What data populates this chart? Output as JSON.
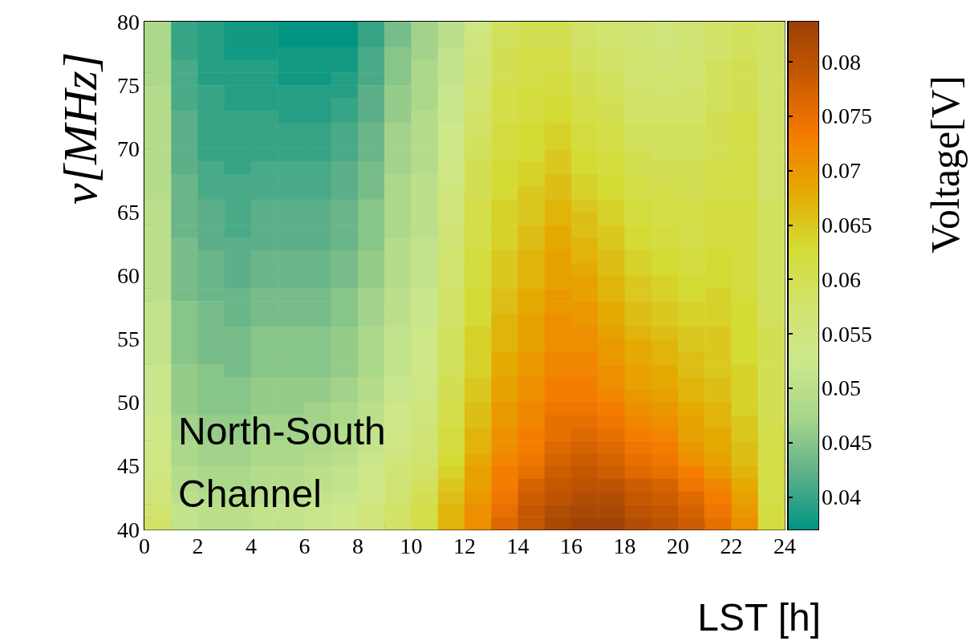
{
  "chart_data": {
    "type": "heatmap",
    "xlabel": "LST [h]",
    "ylabel": "ν[MHz]",
    "clabel": "Voltage[V]",
    "annotations": [
      "North-South\nChannel"
    ],
    "xlim": [
      0,
      24
    ],
    "xticks": [
      0,
      2,
      4,
      6,
      8,
      10,
      12,
      14,
      16,
      18,
      20,
      22,
      24
    ],
    "ylim": [
      40,
      80
    ],
    "yticks": [
      40,
      45,
      50,
      55,
      60,
      65,
      70,
      75,
      80
    ],
    "clim": [
      0.037,
      0.0837
    ],
    "cticks": [
      0.04,
      0.045,
      0.05,
      0.055,
      0.06,
      0.065,
      0.07,
      0.075,
      0.08
    ],
    "cells": [
      [
        0.048,
        0.04,
        0.039,
        0.038,
        0.038,
        0.037,
        0.037,
        0.037,
        0.04,
        0.044,
        0.047,
        0.05,
        0.054,
        0.059,
        0.06,
        0.06,
        0.058,
        0.057,
        0.056,
        0.055,
        0.056,
        0.058,
        0.059,
        0.058
      ],
      [
        0.048,
        0.04,
        0.039,
        0.038,
        0.038,
        0.037,
        0.037,
        0.037,
        0.04,
        0.044,
        0.047,
        0.05,
        0.055,
        0.059,
        0.06,
        0.06,
        0.058,
        0.057,
        0.056,
        0.055,
        0.056,
        0.058,
        0.059,
        0.058
      ],
      [
        0.048,
        0.04,
        0.039,
        0.038,
        0.038,
        0.038,
        0.038,
        0.038,
        0.041,
        0.045,
        0.047,
        0.051,
        0.055,
        0.06,
        0.061,
        0.061,
        0.059,
        0.058,
        0.057,
        0.056,
        0.057,
        0.058,
        0.059,
        0.058
      ],
      [
        0.048,
        0.041,
        0.039,
        0.039,
        0.039,
        0.038,
        0.038,
        0.038,
        0.041,
        0.045,
        0.048,
        0.051,
        0.056,
        0.06,
        0.061,
        0.061,
        0.059,
        0.058,
        0.057,
        0.056,
        0.057,
        0.059,
        0.06,
        0.058
      ],
      [
        0.048,
        0.041,
        0.039,
        0.039,
        0.039,
        0.038,
        0.038,
        0.039,
        0.041,
        0.045,
        0.048,
        0.051,
        0.056,
        0.06,
        0.061,
        0.062,
        0.06,
        0.059,
        0.057,
        0.057,
        0.057,
        0.059,
        0.06,
        0.058
      ],
      [
        0.049,
        0.041,
        0.04,
        0.039,
        0.039,
        0.039,
        0.039,
        0.039,
        0.042,
        0.046,
        0.048,
        0.052,
        0.057,
        0.061,
        0.062,
        0.062,
        0.06,
        0.059,
        0.058,
        0.057,
        0.058,
        0.059,
        0.06,
        0.058
      ],
      [
        0.049,
        0.041,
        0.04,
        0.039,
        0.039,
        0.039,
        0.039,
        0.04,
        0.042,
        0.046,
        0.048,
        0.052,
        0.057,
        0.061,
        0.062,
        0.063,
        0.061,
        0.06,
        0.058,
        0.058,
        0.058,
        0.059,
        0.06,
        0.058
      ],
      [
        0.049,
        0.042,
        0.04,
        0.04,
        0.04,
        0.039,
        0.039,
        0.04,
        0.042,
        0.046,
        0.049,
        0.052,
        0.058,
        0.061,
        0.062,
        0.063,
        0.061,
        0.06,
        0.058,
        0.058,
        0.058,
        0.06,
        0.061,
        0.058
      ],
      [
        0.049,
        0.042,
        0.04,
        0.04,
        0.04,
        0.04,
        0.04,
        0.041,
        0.043,
        0.047,
        0.049,
        0.053,
        0.058,
        0.062,
        0.063,
        0.064,
        0.062,
        0.061,
        0.059,
        0.059,
        0.059,
        0.06,
        0.061,
        0.058
      ],
      [
        0.049,
        0.042,
        0.04,
        0.04,
        0.04,
        0.04,
        0.04,
        0.041,
        0.043,
        0.047,
        0.049,
        0.053,
        0.059,
        0.062,
        0.063,
        0.064,
        0.062,
        0.061,
        0.059,
        0.059,
        0.059,
        0.06,
        0.061,
        0.058
      ],
      [
        0.049,
        0.042,
        0.04,
        0.04,
        0.04,
        0.04,
        0.04,
        0.041,
        0.043,
        0.047,
        0.049,
        0.053,
        0.059,
        0.062,
        0.063,
        0.065,
        0.063,
        0.062,
        0.06,
        0.059,
        0.059,
        0.06,
        0.061,
        0.058
      ],
      [
        0.049,
        0.042,
        0.041,
        0.04,
        0.041,
        0.041,
        0.041,
        0.042,
        0.044,
        0.047,
        0.049,
        0.054,
        0.06,
        0.063,
        0.064,
        0.065,
        0.063,
        0.062,
        0.06,
        0.06,
        0.06,
        0.061,
        0.061,
        0.058
      ],
      [
        0.049,
        0.043,
        0.041,
        0.041,
        0.041,
        0.041,
        0.041,
        0.042,
        0.044,
        0.048,
        0.05,
        0.054,
        0.06,
        0.063,
        0.064,
        0.066,
        0.064,
        0.063,
        0.061,
        0.06,
        0.06,
        0.061,
        0.061,
        0.058
      ],
      [
        0.049,
        0.043,
        0.041,
        0.041,
        0.041,
        0.041,
        0.041,
        0.042,
        0.044,
        0.048,
        0.05,
        0.055,
        0.06,
        0.063,
        0.065,
        0.066,
        0.064,
        0.063,
        0.061,
        0.061,
        0.06,
        0.061,
        0.061,
        0.058
      ],
      [
        0.05,
        0.043,
        0.042,
        0.041,
        0.042,
        0.042,
        0.042,
        0.043,
        0.045,
        0.048,
        0.05,
        0.055,
        0.061,
        0.064,
        0.065,
        0.067,
        0.065,
        0.064,
        0.062,
        0.061,
        0.061,
        0.062,
        0.062,
        0.059
      ],
      [
        0.05,
        0.043,
        0.042,
        0.041,
        0.042,
        0.042,
        0.042,
        0.043,
        0.045,
        0.048,
        0.05,
        0.055,
        0.061,
        0.064,
        0.065,
        0.067,
        0.066,
        0.064,
        0.062,
        0.061,
        0.061,
        0.062,
        0.062,
        0.059
      ],
      [
        0.05,
        0.043,
        0.042,
        0.041,
        0.042,
        0.042,
        0.042,
        0.043,
        0.045,
        0.048,
        0.05,
        0.056,
        0.061,
        0.064,
        0.066,
        0.068,
        0.066,
        0.065,
        0.063,
        0.062,
        0.061,
        0.062,
        0.062,
        0.059
      ],
      [
        0.05,
        0.044,
        0.042,
        0.042,
        0.042,
        0.042,
        0.042,
        0.043,
        0.045,
        0.049,
        0.051,
        0.056,
        0.061,
        0.064,
        0.066,
        0.068,
        0.067,
        0.065,
        0.063,
        0.062,
        0.061,
        0.062,
        0.062,
        0.059
      ],
      [
        0.05,
        0.044,
        0.043,
        0.042,
        0.043,
        0.043,
        0.043,
        0.044,
        0.046,
        0.049,
        0.051,
        0.057,
        0.062,
        0.065,
        0.067,
        0.069,
        0.067,
        0.066,
        0.064,
        0.063,
        0.062,
        0.063,
        0.062,
        0.059
      ],
      [
        0.05,
        0.044,
        0.043,
        0.042,
        0.043,
        0.043,
        0.043,
        0.044,
        0.046,
        0.049,
        0.051,
        0.057,
        0.062,
        0.065,
        0.067,
        0.069,
        0.068,
        0.066,
        0.064,
        0.063,
        0.062,
        0.063,
        0.062,
        0.059
      ],
      [
        0.05,
        0.044,
        0.043,
        0.042,
        0.043,
        0.043,
        0.043,
        0.044,
        0.046,
        0.049,
        0.051,
        0.057,
        0.062,
        0.065,
        0.067,
        0.069,
        0.069,
        0.067,
        0.065,
        0.064,
        0.063,
        0.063,
        0.062,
        0.059
      ],
      [
        0.05,
        0.044,
        0.043,
        0.043,
        0.044,
        0.044,
        0.044,
        0.045,
        0.047,
        0.05,
        0.052,
        0.058,
        0.063,
        0.066,
        0.068,
        0.07,
        0.069,
        0.067,
        0.065,
        0.064,
        0.063,
        0.064,
        0.062,
        0.059
      ],
      [
        0.051,
        0.045,
        0.044,
        0.043,
        0.044,
        0.044,
        0.044,
        0.045,
        0.047,
        0.05,
        0.052,
        0.058,
        0.063,
        0.066,
        0.068,
        0.07,
        0.07,
        0.068,
        0.066,
        0.065,
        0.064,
        0.064,
        0.063,
        0.059
      ],
      [
        0.051,
        0.045,
        0.044,
        0.043,
        0.044,
        0.044,
        0.044,
        0.045,
        0.047,
        0.05,
        0.052,
        0.058,
        0.063,
        0.067,
        0.069,
        0.071,
        0.07,
        0.068,
        0.066,
        0.065,
        0.064,
        0.064,
        0.063,
        0.059
      ],
      [
        0.051,
        0.045,
        0.044,
        0.044,
        0.045,
        0.045,
        0.045,
        0.046,
        0.048,
        0.051,
        0.053,
        0.059,
        0.064,
        0.067,
        0.069,
        0.071,
        0.071,
        0.069,
        0.067,
        0.066,
        0.065,
        0.065,
        0.063,
        0.06
      ],
      [
        0.051,
        0.045,
        0.044,
        0.044,
        0.045,
        0.045,
        0.045,
        0.046,
        0.048,
        0.051,
        0.053,
        0.059,
        0.064,
        0.067,
        0.069,
        0.071,
        0.071,
        0.07,
        0.068,
        0.067,
        0.065,
        0.065,
        0.063,
        0.06
      ],
      [
        0.051,
        0.045,
        0.044,
        0.044,
        0.045,
        0.045,
        0.045,
        0.046,
        0.048,
        0.051,
        0.053,
        0.059,
        0.064,
        0.068,
        0.07,
        0.072,
        0.072,
        0.07,
        0.068,
        0.067,
        0.066,
        0.065,
        0.063,
        0.06
      ],
      [
        0.052,
        0.046,
        0.045,
        0.044,
        0.045,
        0.045,
        0.045,
        0.046,
        0.048,
        0.051,
        0.053,
        0.059,
        0.064,
        0.068,
        0.07,
        0.072,
        0.072,
        0.071,
        0.069,
        0.068,
        0.066,
        0.065,
        0.064,
        0.06
      ],
      [
        0.052,
        0.046,
        0.045,
        0.045,
        0.046,
        0.046,
        0.046,
        0.047,
        0.049,
        0.052,
        0.054,
        0.06,
        0.065,
        0.069,
        0.071,
        0.073,
        0.073,
        0.071,
        0.069,
        0.068,
        0.067,
        0.066,
        0.064,
        0.06
      ],
      [
        0.052,
        0.046,
        0.045,
        0.045,
        0.046,
        0.046,
        0.046,
        0.047,
        0.049,
        0.052,
        0.054,
        0.06,
        0.065,
        0.069,
        0.071,
        0.073,
        0.073,
        0.072,
        0.07,
        0.069,
        0.067,
        0.066,
        0.064,
        0.06
      ],
      [
        0.052,
        0.046,
        0.045,
        0.045,
        0.046,
        0.046,
        0.047,
        0.048,
        0.05,
        0.053,
        0.055,
        0.061,
        0.066,
        0.07,
        0.072,
        0.074,
        0.074,
        0.073,
        0.071,
        0.07,
        0.068,
        0.067,
        0.064,
        0.06
      ],
      [
        0.053,
        0.047,
        0.046,
        0.046,
        0.047,
        0.047,
        0.047,
        0.048,
        0.05,
        0.053,
        0.055,
        0.061,
        0.066,
        0.07,
        0.072,
        0.075,
        0.075,
        0.074,
        0.072,
        0.071,
        0.069,
        0.067,
        0.065,
        0.06
      ],
      [
        0.053,
        0.047,
        0.046,
        0.046,
        0.047,
        0.047,
        0.048,
        0.049,
        0.051,
        0.054,
        0.056,
        0.062,
        0.067,
        0.071,
        0.073,
        0.075,
        0.076,
        0.075,
        0.073,
        0.072,
        0.069,
        0.068,
        0.065,
        0.061
      ],
      [
        0.054,
        0.048,
        0.047,
        0.047,
        0.048,
        0.048,
        0.048,
        0.049,
        0.051,
        0.054,
        0.056,
        0.062,
        0.067,
        0.071,
        0.073,
        0.076,
        0.077,
        0.076,
        0.074,
        0.073,
        0.07,
        0.068,
        0.066,
        0.061
      ],
      [
        0.054,
        0.048,
        0.047,
        0.047,
        0.048,
        0.048,
        0.049,
        0.05,
        0.052,
        0.055,
        0.057,
        0.063,
        0.068,
        0.072,
        0.074,
        0.077,
        0.078,
        0.077,
        0.075,
        0.074,
        0.071,
        0.069,
        0.066,
        0.061
      ],
      [
        0.054,
        0.049,
        0.048,
        0.048,
        0.049,
        0.049,
        0.05,
        0.051,
        0.053,
        0.056,
        0.058,
        0.064,
        0.069,
        0.073,
        0.075,
        0.078,
        0.079,
        0.078,
        0.076,
        0.075,
        0.073,
        0.07,
        0.067,
        0.061
      ],
      [
        0.055,
        0.049,
        0.048,
        0.048,
        0.049,
        0.049,
        0.05,
        0.051,
        0.053,
        0.056,
        0.059,
        0.065,
        0.069,
        0.073,
        0.077,
        0.079,
        0.08,
        0.08,
        0.078,
        0.077,
        0.074,
        0.072,
        0.068,
        0.061
      ],
      [
        0.055,
        0.05,
        0.049,
        0.049,
        0.05,
        0.05,
        0.051,
        0.052,
        0.054,
        0.057,
        0.06,
        0.066,
        0.07,
        0.074,
        0.078,
        0.08,
        0.081,
        0.081,
        0.079,
        0.078,
        0.076,
        0.073,
        0.069,
        0.061
      ],
      [
        0.057,
        0.051,
        0.05,
        0.05,
        0.051,
        0.051,
        0.052,
        0.053,
        0.055,
        0.058,
        0.061,
        0.067,
        0.071,
        0.075,
        0.079,
        0.081,
        0.082,
        0.082,
        0.08,
        0.079,
        0.077,
        0.074,
        0.07,
        0.062
      ],
      [
        0.058,
        0.051,
        0.05,
        0.05,
        0.051,
        0.051,
        0.052,
        0.053,
        0.055,
        0.058,
        0.061,
        0.067,
        0.071,
        0.076,
        0.079,
        0.082,
        0.083,
        0.083,
        0.081,
        0.08,
        0.078,
        0.075,
        0.071,
        0.062
      ]
    ]
  }
}
